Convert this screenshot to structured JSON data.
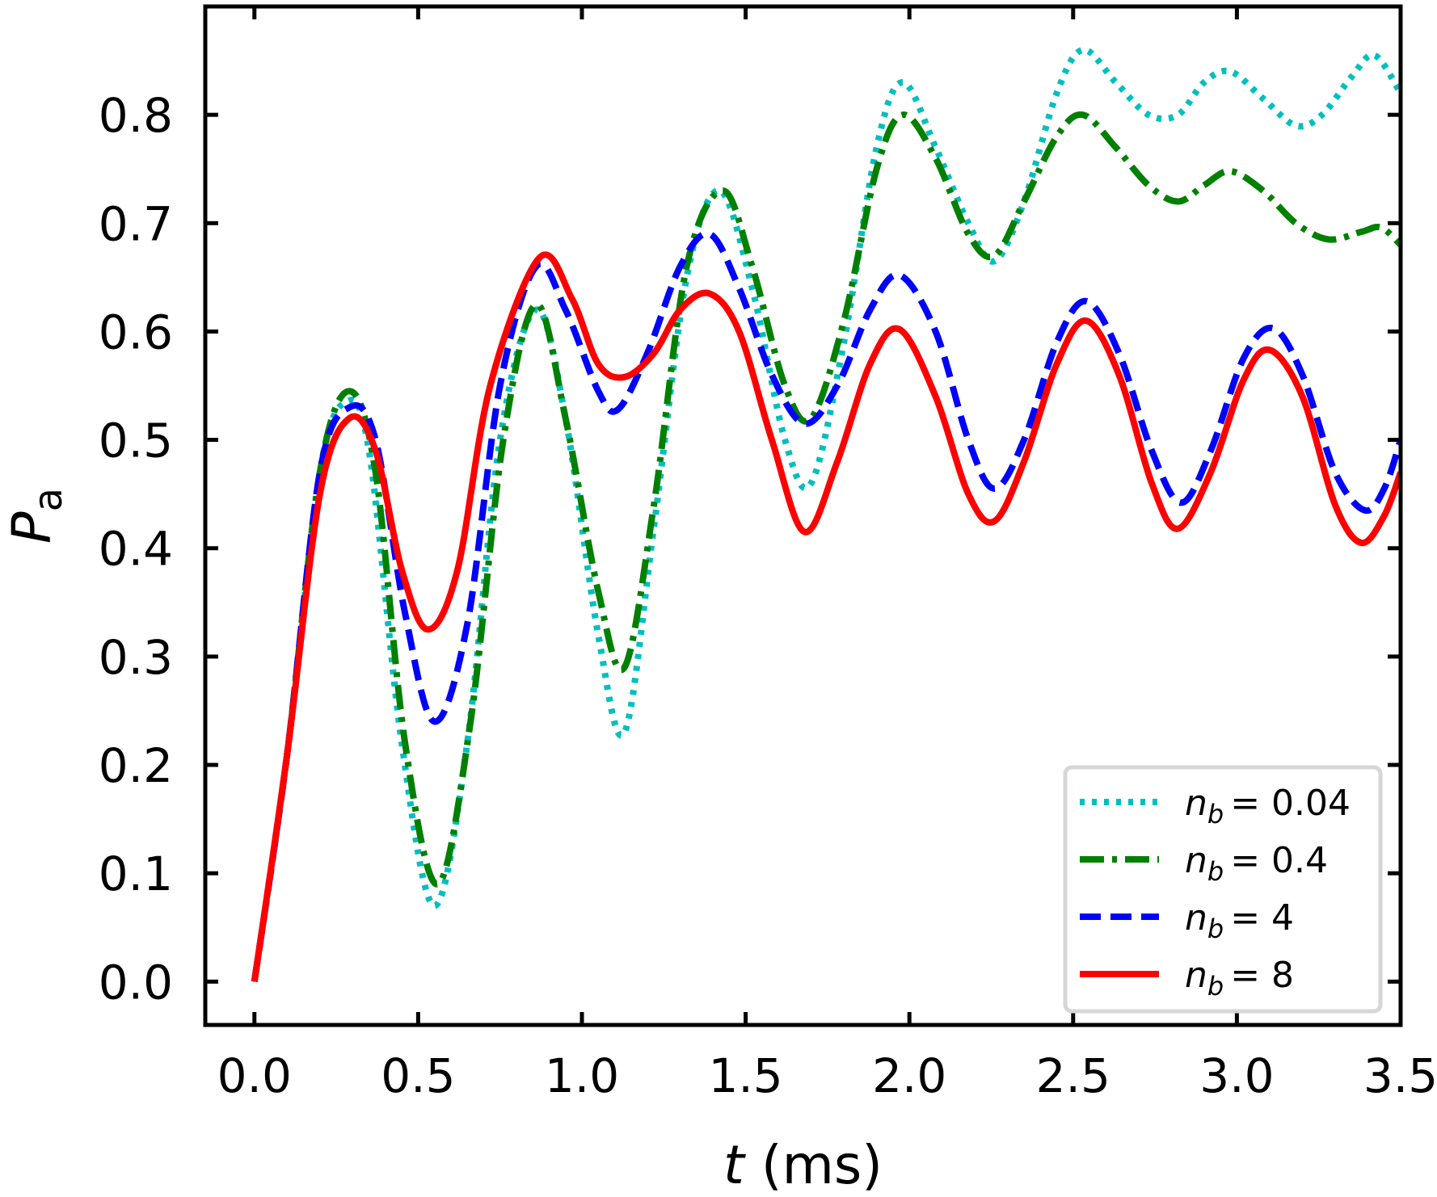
{
  "chart_data": {
    "type": "line",
    "xlabel_var": "t",
    "xlabel_unit": " (ms)",
    "ylabel_main": "P",
    "ylabel_sub": "a",
    "xlim": [
      -0.15,
      3.5
    ],
    "ylim": [
      -0.04,
      0.9
    ],
    "xticks": [
      0.0,
      0.5,
      1.0,
      1.5,
      2.0,
      2.5,
      3.0,
      3.5
    ],
    "xtick_labels": [
      "0.0",
      "0.5",
      "1.0",
      "1.5",
      "2.0",
      "2.5",
      "3.0",
      "3.5"
    ],
    "yticks": [
      0.0,
      0.1,
      0.2,
      0.3,
      0.4,
      0.5,
      0.6,
      0.7,
      0.8
    ],
    "ytick_labels": [
      "0.0",
      "0.1",
      "0.2",
      "0.3",
      "0.4",
      "0.5",
      "0.6",
      "0.7",
      "0.8"
    ],
    "legend_position": "bottom-right",
    "series": [
      {
        "name": "n_b = 0.04",
        "legend_var": "n",
        "legend_sub": "b",
        "legend_value": "= 0.04",
        "color": "#00bfbf",
        "style": "dotted",
        "points": [
          [
            0.0,
            0.0
          ],
          [
            0.1,
            0.21
          ],
          [
            0.2,
            0.47
          ],
          [
            0.28,
            0.535
          ],
          [
            0.35,
            0.49
          ],
          [
            0.45,
            0.22
          ],
          [
            0.55,
            0.07
          ],
          [
            0.65,
            0.22
          ],
          [
            0.75,
            0.5
          ],
          [
            0.86,
            0.62
          ],
          [
            0.95,
            0.52
          ],
          [
            1.05,
            0.32
          ],
          [
            1.13,
            0.23
          ],
          [
            1.22,
            0.42
          ],
          [
            1.32,
            0.65
          ],
          [
            1.42,
            0.73
          ],
          [
            1.52,
            0.64
          ],
          [
            1.62,
            0.5
          ],
          [
            1.7,
            0.46
          ],
          [
            1.8,
            0.59
          ],
          [
            1.9,
            0.77
          ],
          [
            1.98,
            0.83
          ],
          [
            2.08,
            0.77
          ],
          [
            2.18,
            0.7
          ],
          [
            2.26,
            0.665
          ],
          [
            2.35,
            0.72
          ],
          [
            2.45,
            0.82
          ],
          [
            2.53,
            0.86
          ],
          [
            2.63,
            0.83
          ],
          [
            2.73,
            0.8
          ],
          [
            2.82,
            0.8
          ],
          [
            2.9,
            0.83
          ],
          [
            2.98,
            0.84
          ],
          [
            3.08,
            0.815
          ],
          [
            3.18,
            0.79
          ],
          [
            3.26,
            0.8
          ],
          [
            3.35,
            0.835
          ],
          [
            3.42,
            0.855
          ],
          [
            3.5,
            0.82
          ]
        ]
      },
      {
        "name": "n_b = 0.4",
        "legend_var": "n",
        "legend_sub": "b",
        "legend_value": "= 0.4",
        "color": "#008000",
        "style": "dashdot",
        "points": [
          [
            0.0,
            0.0
          ],
          [
            0.1,
            0.21
          ],
          [
            0.2,
            0.47
          ],
          [
            0.29,
            0.545
          ],
          [
            0.37,
            0.47
          ],
          [
            0.46,
            0.22
          ],
          [
            0.56,
            0.09
          ],
          [
            0.66,
            0.24
          ],
          [
            0.76,
            0.5
          ],
          [
            0.86,
            0.625
          ],
          [
            0.95,
            0.52
          ],
          [
            1.05,
            0.36
          ],
          [
            1.13,
            0.29
          ],
          [
            1.22,
            0.44
          ],
          [
            1.32,
            0.66
          ],
          [
            1.43,
            0.73
          ],
          [
            1.52,
            0.66
          ],
          [
            1.62,
            0.55
          ],
          [
            1.7,
            0.52
          ],
          [
            1.8,
            0.61
          ],
          [
            1.9,
            0.75
          ],
          [
            1.98,
            0.8
          ],
          [
            2.08,
            0.76
          ],
          [
            2.18,
            0.69
          ],
          [
            2.26,
            0.67
          ],
          [
            2.35,
            0.72
          ],
          [
            2.45,
            0.78
          ],
          [
            2.53,
            0.8
          ],
          [
            2.63,
            0.77
          ],
          [
            2.73,
            0.735
          ],
          [
            2.82,
            0.72
          ],
          [
            2.9,
            0.735
          ],
          [
            2.98,
            0.748
          ],
          [
            3.08,
            0.73
          ],
          [
            3.18,
            0.7
          ],
          [
            3.28,
            0.685
          ],
          [
            3.38,
            0.692
          ],
          [
            3.44,
            0.696
          ],
          [
            3.5,
            0.68
          ]
        ]
      },
      {
        "name": "n_b = 4",
        "legend_var": "n",
        "legend_sub": "b",
        "legend_value": "= 4",
        "color": "#0000ff",
        "style": "dashed",
        "points": [
          [
            0.0,
            0.0
          ],
          [
            0.1,
            0.21
          ],
          [
            0.2,
            0.47
          ],
          [
            0.29,
            0.53
          ],
          [
            0.37,
            0.5
          ],
          [
            0.46,
            0.34
          ],
          [
            0.55,
            0.24
          ],
          [
            0.65,
            0.33
          ],
          [
            0.75,
            0.55
          ],
          [
            0.86,
            0.66
          ],
          [
            0.95,
            0.62
          ],
          [
            1.05,
            0.545
          ],
          [
            1.11,
            0.528
          ],
          [
            1.2,
            0.58
          ],
          [
            1.3,
            0.66
          ],
          [
            1.39,
            0.69
          ],
          [
            1.48,
            0.64
          ],
          [
            1.58,
            0.56
          ],
          [
            1.68,
            0.515
          ],
          [
            1.78,
            0.55
          ],
          [
            1.88,
            0.62
          ],
          [
            1.97,
            0.652
          ],
          [
            2.08,
            0.6
          ],
          [
            2.18,
            0.5
          ],
          [
            2.26,
            0.455
          ],
          [
            2.35,
            0.5
          ],
          [
            2.45,
            0.59
          ],
          [
            2.54,
            0.628
          ],
          [
            2.64,
            0.58
          ],
          [
            2.74,
            0.49
          ],
          [
            2.83,
            0.442
          ],
          [
            2.92,
            0.49
          ],
          [
            3.02,
            0.575
          ],
          [
            3.11,
            0.603
          ],
          [
            3.2,
            0.56
          ],
          [
            3.3,
            0.47
          ],
          [
            3.39,
            0.435
          ],
          [
            3.45,
            0.455
          ],
          [
            3.5,
            0.5
          ]
        ]
      },
      {
        "name": "n_b = 8",
        "legend_var": "n",
        "legend_sub": "b",
        "legend_value": "= 8",
        "color": "#ff0000",
        "style": "solid",
        "points": [
          [
            0.0,
            0.0
          ],
          [
            0.1,
            0.21
          ],
          [
            0.2,
            0.45
          ],
          [
            0.29,
            0.52
          ],
          [
            0.37,
            0.49
          ],
          [
            0.45,
            0.38
          ],
          [
            0.53,
            0.325
          ],
          [
            0.62,
            0.38
          ],
          [
            0.72,
            0.55
          ],
          [
            0.87,
            0.668
          ],
          [
            0.97,
            0.63
          ],
          [
            1.05,
            0.57
          ],
          [
            1.13,
            0.558
          ],
          [
            1.22,
            0.58
          ],
          [
            1.3,
            0.62
          ],
          [
            1.39,
            0.635
          ],
          [
            1.48,
            0.6
          ],
          [
            1.58,
            0.5
          ],
          [
            1.68,
            0.415
          ],
          [
            1.78,
            0.48
          ],
          [
            1.88,
            0.57
          ],
          [
            1.97,
            0.602
          ],
          [
            2.08,
            0.54
          ],
          [
            2.18,
            0.45
          ],
          [
            2.26,
            0.425
          ],
          [
            2.35,
            0.48
          ],
          [
            2.45,
            0.57
          ],
          [
            2.54,
            0.61
          ],
          [
            2.64,
            0.56
          ],
          [
            2.74,
            0.46
          ],
          [
            2.82,
            0.418
          ],
          [
            2.92,
            0.47
          ],
          [
            3.02,
            0.555
          ],
          [
            3.1,
            0.583
          ],
          [
            3.2,
            0.54
          ],
          [
            3.3,
            0.44
          ],
          [
            3.38,
            0.405
          ],
          [
            3.45,
            0.43
          ],
          [
            3.5,
            0.47
          ]
        ]
      }
    ]
  }
}
